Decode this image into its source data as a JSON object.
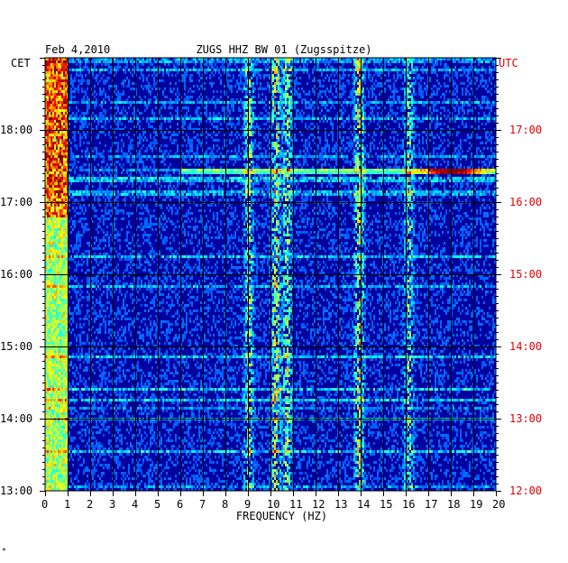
{
  "header": {
    "date": "Feb 4,2010",
    "station": "ZUGS HHZ BW 01 (Zugsspitze)"
  },
  "tz_left": "CET",
  "tz_right": "UTC",
  "marker": "*",
  "colors": {
    "left_axis": "#000000",
    "right_axis": "#e00000"
  },
  "chart_data": {
    "type": "heatmap",
    "title": "ZUGS HHZ BW 01 (Zugsspitze)",
    "date": "Feb 4,2010",
    "xlabel": "FREQUENCY (HZ)",
    "xlim": [
      0,
      20
    ],
    "x_ticks": [
      "0",
      "1",
      "2",
      "3",
      "4",
      "5",
      "6",
      "7",
      "8",
      "9",
      "10",
      "11",
      "12",
      "13",
      "14",
      "15",
      "16",
      "17",
      "18",
      "19",
      "20"
    ],
    "y_left_label": "CET",
    "y_left_ticks": [
      "18:00",
      "17:00",
      "16:00",
      "15:00",
      "14:00",
      "13:00"
    ],
    "y_right_label": "UTC",
    "y_right_ticks": [
      "17:00",
      "16:00",
      "15:00",
      "14:00",
      "13:00",
      "12:00"
    ],
    "time_range_cet": [
      "13:00",
      "18:50"
    ],
    "grid": true,
    "colormap": "jet",
    "features": [
      {
        "name": "low-frequency energy",
        "freq_hz": [
          0.1,
          0.8
        ],
        "strength": 0.75
      },
      {
        "name": "band 9 Hz",
        "freq_hz": 9.0,
        "strength": 0.45
      },
      {
        "name": "band 10 Hz",
        "freq_hz": 10.2,
        "strength": 0.55
      },
      {
        "name": "band 10.7 Hz",
        "freq_hz": 10.7,
        "strength": 0.45
      },
      {
        "name": "band 14 Hz",
        "freq_hz": 13.9,
        "strength": 0.55
      },
      {
        "name": "band 16 Hz",
        "freq_hz": 16.1,
        "strength": 0.4
      },
      {
        "name": "broadband burst",
        "time_cet": "17:27",
        "freq_hz": [
          6,
          20
        ],
        "peak_freq_hz": 18
      }
    ]
  }
}
